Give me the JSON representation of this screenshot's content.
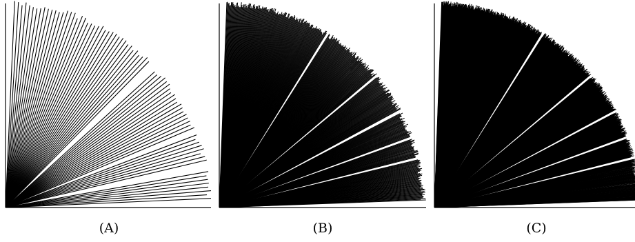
{
  "figure": {
    "panels": [
      {
        "id": "a",
        "label": "(A)",
        "ray_count": 80
      },
      {
        "id": "b",
        "label": "(B)",
        "ray_count": 400
      },
      {
        "id": "c",
        "label": "(C)",
        "ray_count": 1100
      }
    ],
    "colors": {
      "ink": "#000000",
      "background": "#ffffff"
    }
  }
}
